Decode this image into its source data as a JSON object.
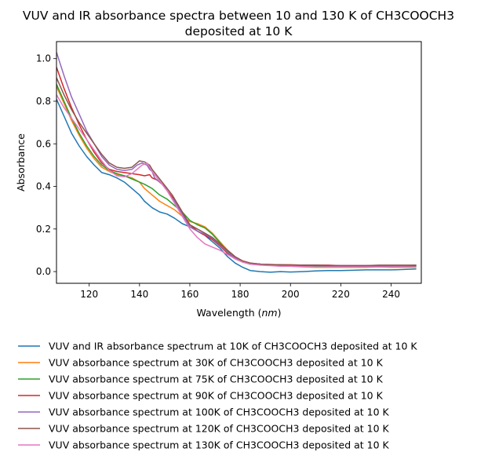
{
  "chart_data": {
    "type": "line",
    "title_line1": "VUV and IR absorbance spectra between 10 and 130 K of CH3COOCH3",
    "title_line2": "deposited at 10 K",
    "xlabel_prefix": "Wavelength (",
    "xlabel_unit": "nm",
    "xlabel_suffix": ")",
    "ylabel": "Absorbance",
    "xlim": [
      107,
      252
    ],
    "ylim": [
      -0.055,
      1.08
    ],
    "xticks": [
      120,
      140,
      160,
      180,
      200,
      220,
      240
    ],
    "yticks": [
      0.0,
      0.2,
      0.4,
      0.6,
      0.8,
      1.0
    ],
    "xtick_labels": [
      "120",
      "140",
      "160",
      "180",
      "200",
      "220",
      "240"
    ],
    "ytick_labels": [
      "0.0",
      "0.2",
      "0.4",
      "0.6",
      "0.8",
      "1.0"
    ],
    "grid": false,
    "legend_position": "below",
    "series": [
      {
        "name": "VUV and IR absorbance spectrum at 10K of CH3COOCH3 deposited at 10 K",
        "color": "#1f77b4",
        "points": [
          [
            107,
            0.81
          ],
          [
            110,
            0.73
          ],
          [
            113,
            0.65
          ],
          [
            116,
            0.59
          ],
          [
            119,
            0.54
          ],
          [
            122,
            0.5
          ],
          [
            125,
            0.465
          ],
          [
            128,
            0.455
          ],
          [
            131,
            0.44
          ],
          [
            134,
            0.42
          ],
          [
            137,
            0.39
          ],
          [
            140,
            0.36
          ],
          [
            142,
            0.33
          ],
          [
            145,
            0.3
          ],
          [
            148,
            0.28
          ],
          [
            151,
            0.27
          ],
          [
            154,
            0.25
          ],
          [
            157,
            0.225
          ],
          [
            160,
            0.21
          ],
          [
            163,
            0.19
          ],
          [
            166,
            0.17
          ],
          [
            169,
            0.14
          ],
          [
            172,
            0.11
          ],
          [
            175,
            0.07
          ],
          [
            178,
            0.04
          ],
          [
            181,
            0.02
          ],
          [
            184,
            0.005
          ],
          [
            188,
            0.0
          ],
          [
            192,
            -0.003
          ],
          [
            196,
            0.0
          ],
          [
            200,
            -0.002
          ],
          [
            205,
            0.0
          ],
          [
            210,
            0.003
          ],
          [
            215,
            0.005
          ],
          [
            220,
            0.005
          ],
          [
            225,
            0.006
          ],
          [
            230,
            0.008
          ],
          [
            235,
            0.008
          ],
          [
            240,
            0.008
          ],
          [
            245,
            0.01
          ],
          [
            250,
            0.012
          ]
        ]
      },
      {
        "name": "VUV absorbance spectrum at 30K of CH3COOCH3 deposited at 10 K",
        "color": "#ff7f0e",
        "points": [
          [
            107,
            0.87
          ],
          [
            110,
            0.79
          ],
          [
            113,
            0.71
          ],
          [
            116,
            0.64
          ],
          [
            119,
            0.58
          ],
          [
            122,
            0.53
          ],
          [
            125,
            0.49
          ],
          [
            128,
            0.47
          ],
          [
            131,
            0.455
          ],
          [
            134,
            0.45
          ],
          [
            137,
            0.44
          ],
          [
            140,
            0.42
          ],
          [
            142,
            0.39
          ],
          [
            145,
            0.36
          ],
          [
            148,
            0.33
          ],
          [
            151,
            0.31
          ],
          [
            154,
            0.29
          ],
          [
            157,
            0.26
          ],
          [
            160,
            0.235
          ],
          [
            163,
            0.225
          ],
          [
            166,
            0.21
          ],
          [
            169,
            0.18
          ],
          [
            172,
            0.14
          ],
          [
            175,
            0.1
          ],
          [
            178,
            0.07
          ],
          [
            181,
            0.05
          ],
          [
            184,
            0.04
          ],
          [
            188,
            0.035
          ],
          [
            192,
            0.03
          ],
          [
            196,
            0.03
          ],
          [
            200,
            0.025
          ],
          [
            205,
            0.022
          ],
          [
            210,
            0.02
          ],
          [
            215,
            0.02
          ],
          [
            220,
            0.02
          ],
          [
            225,
            0.02
          ],
          [
            230,
            0.02
          ],
          [
            235,
            0.022
          ],
          [
            240,
            0.02
          ],
          [
            245,
            0.02
          ],
          [
            250,
            0.02
          ]
        ]
      },
      {
        "name": "VUV absorbance spectrum at 75K of CH3COOCH3 deposited at 10 K",
        "color": "#2ca02c",
        "points": [
          [
            107,
            0.88
          ],
          [
            110,
            0.8
          ],
          [
            113,
            0.72
          ],
          [
            116,
            0.65
          ],
          [
            119,
            0.59
          ],
          [
            122,
            0.54
          ],
          [
            125,
            0.5
          ],
          [
            128,
            0.475
          ],
          [
            131,
            0.46
          ],
          [
            134,
            0.45
          ],
          [
            137,
            0.435
          ],
          [
            140,
            0.42
          ],
          [
            142,
            0.41
          ],
          [
            145,
            0.39
          ],
          [
            148,
            0.36
          ],
          [
            151,
            0.34
          ],
          [
            154,
            0.31
          ],
          [
            157,
            0.28
          ],
          [
            160,
            0.24
          ],
          [
            163,
            0.22
          ],
          [
            166,
            0.205
          ],
          [
            169,
            0.175
          ],
          [
            172,
            0.135
          ],
          [
            175,
            0.095
          ],
          [
            178,
            0.065
          ],
          [
            181,
            0.045
          ],
          [
            184,
            0.035
          ],
          [
            188,
            0.032
          ],
          [
            192,
            0.03
          ],
          [
            196,
            0.03
          ],
          [
            200,
            0.03
          ],
          [
            205,
            0.028
          ],
          [
            210,
            0.027
          ],
          [
            215,
            0.026
          ],
          [
            220,
            0.025
          ],
          [
            225,
            0.025
          ],
          [
            230,
            0.025
          ],
          [
            235,
            0.025
          ],
          [
            240,
            0.025
          ],
          [
            245,
            0.025
          ],
          [
            250,
            0.025
          ]
        ]
      },
      {
        "name": "VUV absorbance spectrum at 90K of CH3COOCH3 deposited at 10 K",
        "color": "#d62728",
        "points": [
          [
            107,
            0.96
          ],
          [
            110,
            0.86
          ],
          [
            113,
            0.77
          ],
          [
            116,
            0.69
          ],
          [
            119,
            0.62
          ],
          [
            122,
            0.56
          ],
          [
            125,
            0.51
          ],
          [
            128,
            0.48
          ],
          [
            131,
            0.47
          ],
          [
            134,
            0.465
          ],
          [
            137,
            0.46
          ],
          [
            140,
            0.455
          ],
          [
            142,
            0.45
          ],
          [
            144,
            0.455
          ],
          [
            145,
            0.44
          ],
          [
            147,
            0.43
          ],
          [
            149,
            0.41
          ],
          [
            151,
            0.38
          ],
          [
            153,
            0.35
          ],
          [
            155,
            0.32
          ],
          [
            157,
            0.28
          ],
          [
            160,
            0.22
          ],
          [
            163,
            0.19
          ],
          [
            166,
            0.17
          ],
          [
            169,
            0.15
          ],
          [
            172,
            0.12
          ],
          [
            175,
            0.085
          ],
          [
            178,
            0.06
          ],
          [
            181,
            0.045
          ],
          [
            184,
            0.038
          ],
          [
            188,
            0.035
          ],
          [
            192,
            0.033
          ],
          [
            196,
            0.032
          ],
          [
            200,
            0.032
          ],
          [
            205,
            0.03
          ],
          [
            210,
            0.03
          ],
          [
            215,
            0.03
          ],
          [
            220,
            0.028
          ],
          [
            225,
            0.028
          ],
          [
            230,
            0.028
          ],
          [
            235,
            0.028
          ],
          [
            240,
            0.028
          ],
          [
            245,
            0.028
          ],
          [
            250,
            0.028
          ]
        ]
      },
      {
        "name": "VUV absorbance spectrum at 100K of CH3COOCH3 deposited at 10 K",
        "color": "#9467bd",
        "points": [
          [
            107,
            1.03
          ],
          [
            110,
            0.92
          ],
          [
            113,
            0.82
          ],
          [
            116,
            0.74
          ],
          [
            119,
            0.66
          ],
          [
            122,
            0.6
          ],
          [
            125,
            0.54
          ],
          [
            128,
            0.5
          ],
          [
            131,
            0.48
          ],
          [
            134,
            0.475
          ],
          [
            137,
            0.48
          ],
          [
            139,
            0.5
          ],
          [
            141,
            0.51
          ],
          [
            143,
            0.5
          ],
          [
            144,
            0.48
          ],
          [
            145,
            0.47
          ],
          [
            146,
            0.44
          ],
          [
            148,
            0.42
          ],
          [
            150,
            0.4
          ],
          [
            152,
            0.36
          ],
          [
            154,
            0.33
          ],
          [
            156,
            0.29
          ],
          [
            158,
            0.25
          ],
          [
            160,
            0.21
          ],
          [
            163,
            0.19
          ],
          [
            166,
            0.175
          ],
          [
            169,
            0.155
          ],
          [
            172,
            0.125
          ],
          [
            175,
            0.09
          ],
          [
            178,
            0.065
          ],
          [
            181,
            0.048
          ],
          [
            184,
            0.04
          ],
          [
            188,
            0.035
          ],
          [
            192,
            0.033
          ],
          [
            196,
            0.032
          ],
          [
            200,
            0.03
          ],
          [
            205,
            0.03
          ],
          [
            210,
            0.03
          ],
          [
            215,
            0.028
          ],
          [
            220,
            0.028
          ],
          [
            225,
            0.028
          ],
          [
            230,
            0.028
          ],
          [
            235,
            0.028
          ],
          [
            240,
            0.028
          ],
          [
            245,
            0.028
          ],
          [
            250,
            0.03
          ]
        ]
      },
      {
        "name": "VUV absorbance spectrum at 120K of CH3COOCH3 deposited at 10 K",
        "color": "#8c564b",
        "points": [
          [
            107,
            0.91
          ],
          [
            110,
            0.83
          ],
          [
            113,
            0.76
          ],
          [
            116,
            0.7
          ],
          [
            119,
            0.65
          ],
          [
            122,
            0.6
          ],
          [
            125,
            0.55
          ],
          [
            128,
            0.51
          ],
          [
            131,
            0.49
          ],
          [
            134,
            0.485
          ],
          [
            137,
            0.49
          ],
          [
            139,
            0.51
          ],
          [
            140,
            0.52
          ],
          [
            142,
            0.515
          ],
          [
            144,
            0.5
          ],
          [
            145,
            0.48
          ],
          [
            147,
            0.45
          ],
          [
            149,
            0.42
          ],
          [
            151,
            0.39
          ],
          [
            153,
            0.36
          ],
          [
            155,
            0.32
          ],
          [
            157,
            0.28
          ],
          [
            160,
            0.22
          ],
          [
            163,
            0.2
          ],
          [
            166,
            0.18
          ],
          [
            169,
            0.16
          ],
          [
            172,
            0.13
          ],
          [
            175,
            0.1
          ],
          [
            178,
            0.07
          ],
          [
            181,
            0.05
          ],
          [
            184,
            0.04
          ],
          [
            188,
            0.035
          ],
          [
            192,
            0.033
          ],
          [
            196,
            0.032
          ],
          [
            200,
            0.03
          ],
          [
            205,
            0.03
          ],
          [
            210,
            0.03
          ],
          [
            215,
            0.028
          ],
          [
            220,
            0.028
          ],
          [
            225,
            0.028
          ],
          [
            230,
            0.028
          ],
          [
            235,
            0.03
          ],
          [
            240,
            0.03
          ],
          [
            245,
            0.03
          ],
          [
            250,
            0.03
          ]
        ]
      },
      {
        "name": "VUV absorbance spectrum at 130K of CH3COOCH3 deposited at 10 K",
        "color": "#e377c2",
        "points": [
          [
            107,
            0.83
          ],
          [
            110,
            0.77
          ],
          [
            113,
            0.72
          ],
          [
            116,
            0.67
          ],
          [
            119,
            0.62
          ],
          [
            122,
            0.57
          ],
          [
            125,
            0.52
          ],
          [
            128,
            0.475
          ],
          [
            131,
            0.45
          ],
          [
            134,
            0.445
          ],
          [
            137,
            0.46
          ],
          [
            139,
            0.48
          ],
          [
            141,
            0.5
          ],
          [
            143,
            0.51
          ],
          [
            144,
            0.49
          ],
          [
            145,
            0.47
          ],
          [
            147,
            0.44
          ],
          [
            149,
            0.41
          ],
          [
            151,
            0.38
          ],
          [
            153,
            0.34
          ],
          [
            155,
            0.3
          ],
          [
            157,
            0.26
          ],
          [
            160,
            0.2
          ],
          [
            163,
            0.16
          ],
          [
            166,
            0.13
          ],
          [
            169,
            0.115
          ],
          [
            172,
            0.1
          ],
          [
            175,
            0.08
          ],
          [
            178,
            0.06
          ],
          [
            181,
            0.045
          ],
          [
            184,
            0.035
          ],
          [
            188,
            0.03
          ],
          [
            192,
            0.028
          ],
          [
            196,
            0.025
          ],
          [
            200,
            0.025
          ],
          [
            205,
            0.023
          ],
          [
            210,
            0.022
          ],
          [
            215,
            0.022
          ],
          [
            220,
            0.022
          ],
          [
            225,
            0.022
          ],
          [
            230,
            0.022
          ],
          [
            235,
            0.022
          ],
          [
            240,
            0.022
          ],
          [
            245,
            0.022
          ],
          [
            250,
            0.022
          ]
        ]
      }
    ]
  }
}
